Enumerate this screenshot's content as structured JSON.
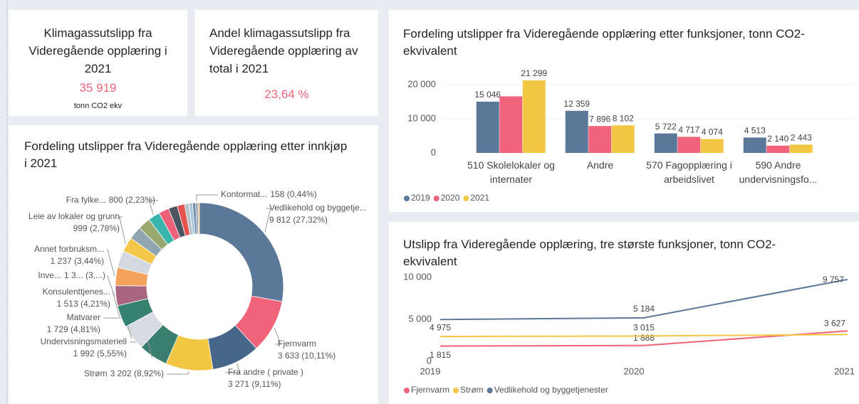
{
  "cards": [
    {
      "title": "Klimagassutslipp fra Videregående opplæring i 2021",
      "value": "35 919",
      "unit": "tonn CO2 ekv"
    },
    {
      "title": "Andel klimagassutslipp fra Videregående opplæring av total i 2021",
      "value": "23,64 %"
    }
  ],
  "chart_data": [
    {
      "type": "pie",
      "donut": true,
      "title": "Fordeling utslipper fra Videregående opplæring etter innkjøp i 2021",
      "categories": [
        "Vedlikehold og byggetje...",
        "Fjernvarm",
        "Fra andre ( private )",
        "Strøm",
        "Undervisningsmateriell",
        "Matvarer",
        "Konsulenttjenes...",
        "Inve...",
        "Annet forbruksm...",
        null,
        "Leie av lokaler og grunn",
        null,
        null,
        "Fra fylke...",
        null,
        null,
        null,
        null,
        null,
        null,
        "Kontormat...",
        null
      ],
      "values": [
        9812,
        3633,
        3271,
        3202,
        1992,
        1729,
        1513,
        1350,
        1237,
        1150,
        999,
        900,
        850,
        800,
        700,
        600,
        500,
        300,
        250,
        200,
        158,
        100
      ],
      "value_labels": [
        "9 812 (27,32%)",
        "3 633 (10,11%)",
        "3 271 (9,11%)",
        "3 202 (8,92%)",
        "1 992 (5,55%)",
        "1 729 (4,81%)",
        "1 513 (4,21%)",
        "1 3... (3,...)",
        "1 237 (3,44%)",
        null,
        "999 (2,78%)",
        null,
        null,
        "800 (2,23%)",
        null,
        null,
        null,
        null,
        null,
        null,
        "158 (0,44%)",
        null
      ],
      "colors": [
        "#5b7899",
        "#f0637a",
        "#46668a",
        "#f2c744",
        "#3a7f6e",
        "#d7dce2",
        "#358270",
        "#a8657f",
        "#f4a25c",
        "#d2d8df",
        "#f3c74a",
        "#8fa5b0",
        "#9aa96f",
        "#39b5ad",
        "#ee5f78",
        "#4a5560",
        "#e4544e",
        "#b9c1c9",
        "#a9c7d8",
        "#6e8aa6",
        "#8a9fb4",
        "#f4a25c"
      ]
    },
    {
      "type": "bar",
      "title": "Fordeling utslipper fra Videregående opplæring etter funksjoner, tonn CO2-ekvivalent",
      "categories": [
        "510 Skolelokaler og internater",
        "Andre",
        "570 Fagopplæring i arbeidslivet",
        "590 Andre undervisningsfo..."
      ],
      "series": [
        {
          "name": "2019",
          "color": "#5b7899",
          "values": [
            15046,
            12359,
            5722,
            4513
          ],
          "value_labels": [
            "15 046",
            "12 359",
            "5 722",
            "4 513"
          ]
        },
        {
          "name": "2020",
          "color": "#f0637a",
          "values": [
            16600,
            7896,
            4717,
            2140
          ],
          "value_labels": [
            null,
            "7 896",
            "4 717",
            "2 140"
          ]
        },
        {
          "name": "2021",
          "color": "#f2c744",
          "values": [
            21299,
            8102,
            4074,
            2443
          ],
          "value_labels": [
            "21 299",
            "8 102",
            "4 074",
            "2 443"
          ]
        }
      ],
      "ylim": [
        0,
        24000
      ],
      "yticks": [
        0,
        {
          "value": 10000,
          "label": "10 000"
        },
        {
          "value": 20000,
          "label": "20 000"
        }
      ],
      "grid": true,
      "legend": "bottom-left"
    },
    {
      "type": "line",
      "title": "Utslipp fra Videregående opplæring, tre største funksjoner, tonn CO2-ekvivalent",
      "x": [
        2019,
        2020,
        2021
      ],
      "xlim": [
        2019,
        2021
      ],
      "xticks": [
        2019,
        2020,
        2021
      ],
      "ylim": [
        0,
        10000
      ],
      "yticks": [
        0,
        {
          "value": 5000,
          "label": "5 000"
        },
        {
          "value": 10000,
          "label": "10 000"
        }
      ],
      "grid": false,
      "legend": "bottom-left",
      "series": [
        {
          "name": "Fjernvarm",
          "color": "#f0637a",
          "values": [
            1815,
            1888,
            3627
          ],
          "value_labels": [
            "1 815",
            "1 888",
            "3 627"
          ]
        },
        {
          "name": "Strøm",
          "color": "#f2c744",
          "values": [
            2960,
            3015,
            3200
          ],
          "value_labels": [
            null,
            "3 015",
            null
          ]
        },
        {
          "name": "Vedlikehold og byggetjenester",
          "color": "#5b7899",
          "values": [
            4975,
            5184,
            9757
          ],
          "value_labels": [
            "4 975",
            "5 184",
            "9 757"
          ]
        }
      ]
    }
  ]
}
